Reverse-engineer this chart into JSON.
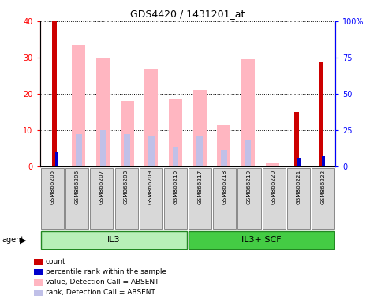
{
  "title": "GDS4420 / 1431201_at",
  "samples": [
    "GSM866205",
    "GSM866206",
    "GSM866207",
    "GSM866208",
    "GSM866209",
    "GSM866210",
    "GSM866217",
    "GSM866218",
    "GSM866219",
    "GSM866220",
    "GSM866221",
    "GSM866222"
  ],
  "group1_label": "IL3",
  "group1_color": "#aaffaa",
  "group1_dark": "#44cc44",
  "group2_label": "IL3+ SCF",
  "group2_color": "#44dd44",
  "group2_dark": "#22aa22",
  "count_values": [
    40,
    0,
    0,
    0,
    0,
    0,
    0,
    0,
    0,
    0,
    15,
    29
  ],
  "percentile_values": [
    10,
    0,
    0,
    0,
    0,
    0,
    0,
    0,
    0,
    0,
    6,
    7
  ],
  "absent_value_bars": [
    0,
    33.5,
    30,
    18,
    27,
    18.5,
    21,
    11.5,
    29.5,
    1,
    0,
    0
  ],
  "absent_rank_bars": [
    0,
    9,
    10,
    9,
    8.5,
    5.5,
    8.5,
    4.5,
    7.5,
    0,
    0,
    0
  ],
  "ylim_left": [
    0,
    40
  ],
  "ylim_right": [
    0,
    100
  ],
  "left_yticks": [
    0,
    10,
    20,
    30,
    40
  ],
  "right_yticks": [
    0,
    25,
    50,
    75,
    100
  ],
  "right_yticklabels": [
    "0",
    "25",
    "50",
    "75",
    "100%"
  ],
  "count_color": "#cc0000",
  "percentile_color": "#0000cc",
  "absent_value_color": "#ffb6c1",
  "absent_rank_color": "#c0c0e8",
  "legend_items": [
    {
      "color": "#cc0000",
      "label": "count"
    },
    {
      "color": "#0000cc",
      "label": "percentile rank within the sample"
    },
    {
      "color": "#ffb6c1",
      "label": "value, Detection Call = ABSENT"
    },
    {
      "color": "#c0c0e8",
      "label": "rank, Detection Call = ABSENT"
    }
  ]
}
